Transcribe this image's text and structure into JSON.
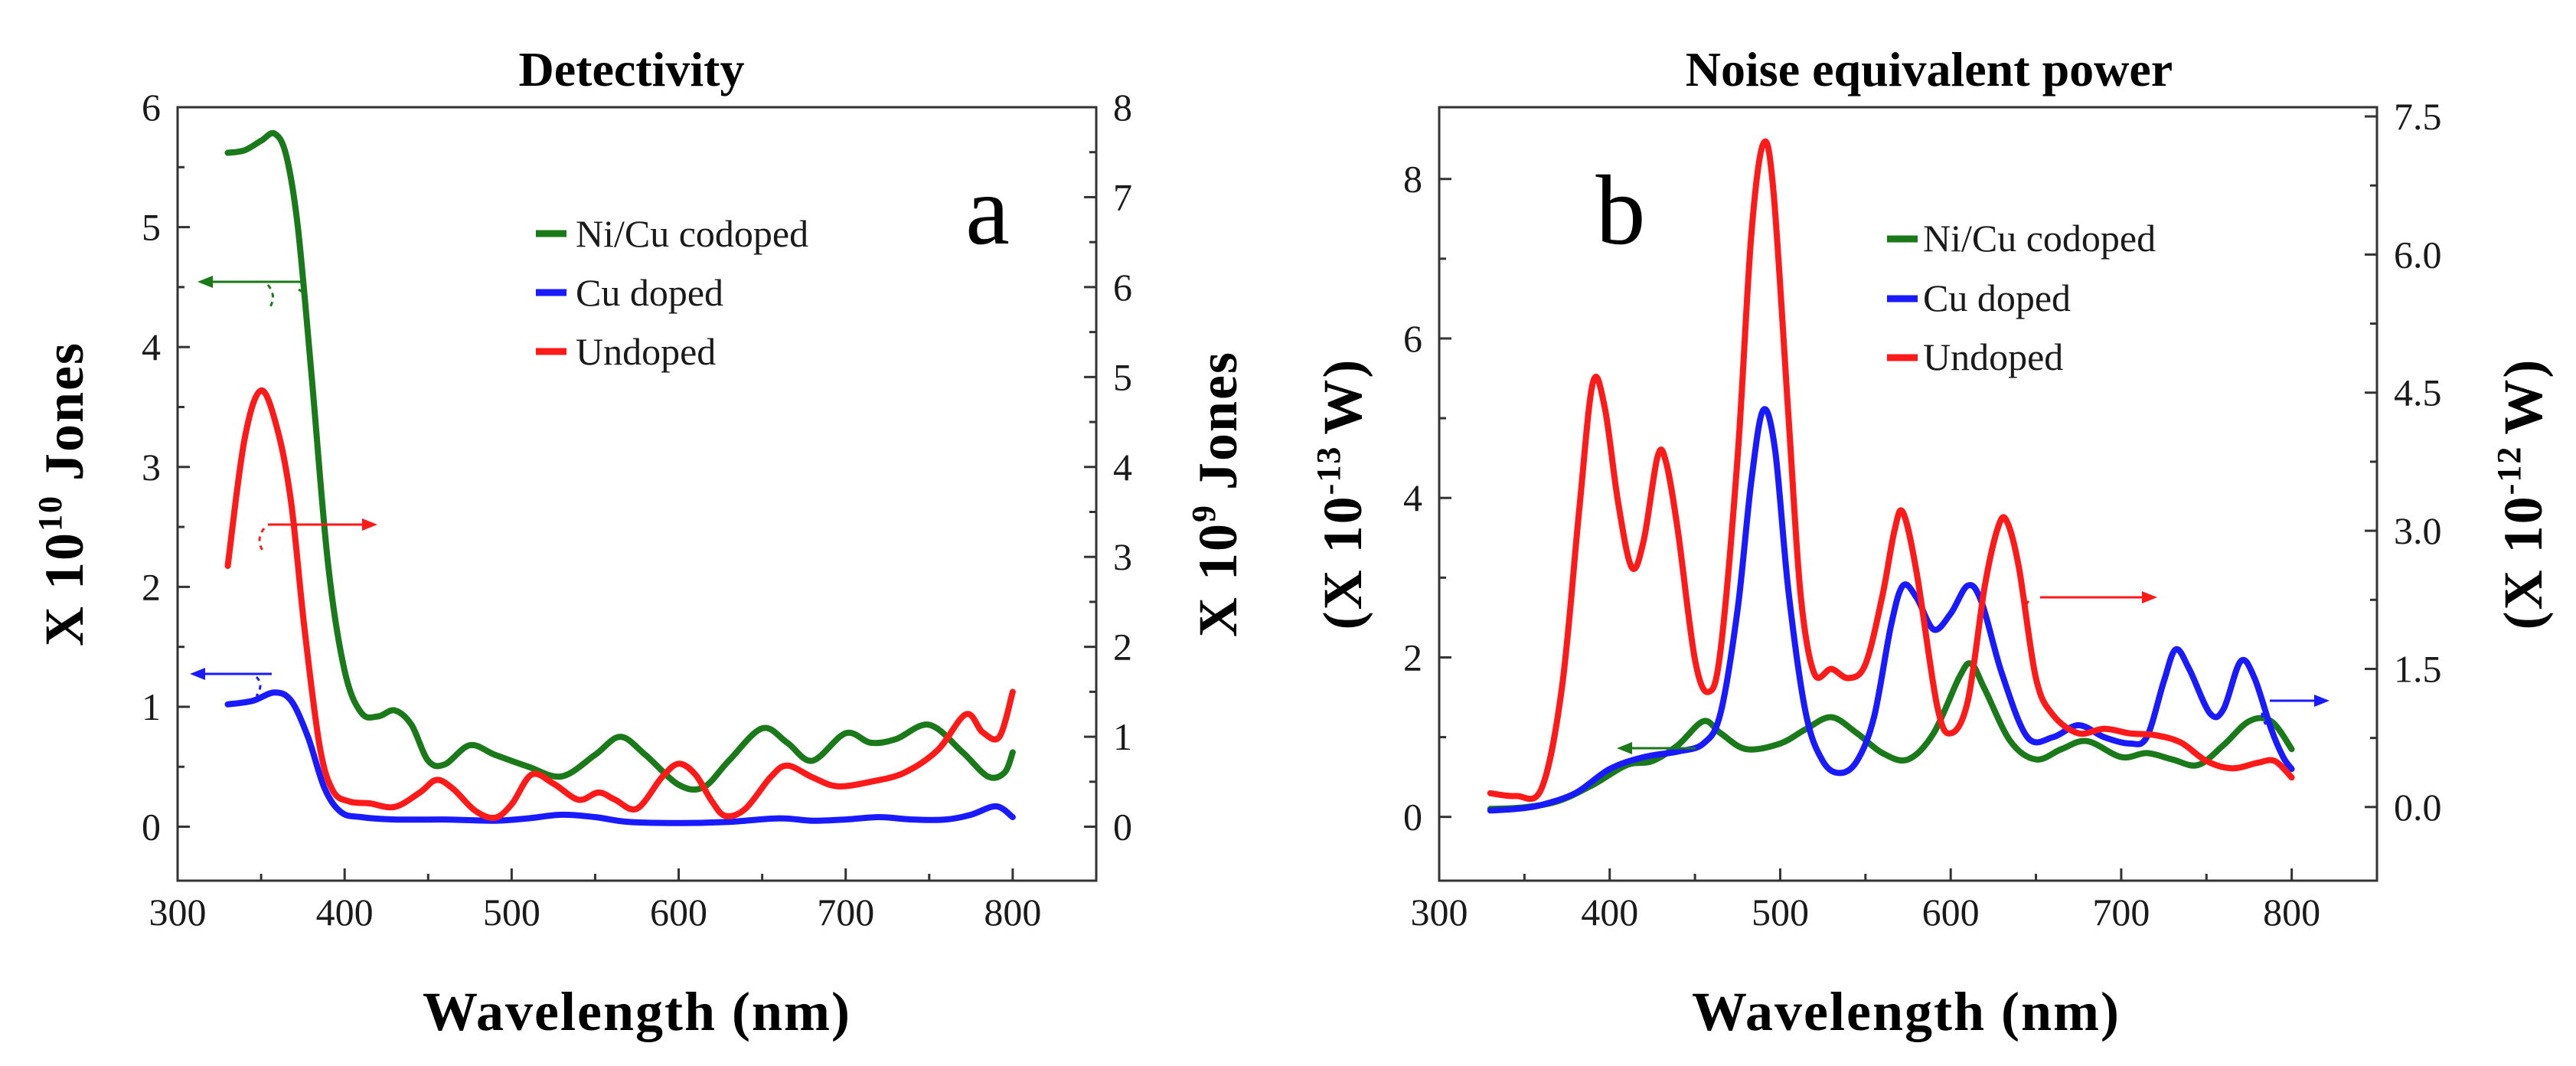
{
  "colors": {
    "codoped": "#1a7a1a",
    "cu": "#1a1aff",
    "undoped": "#ff1a1a",
    "axis": "#333333"
  },
  "chart_data": [
    {
      "type": "line",
      "panel_label": "a",
      "title": "Detectivity",
      "xlabel": "Wavelength (nm)",
      "ylabel": "X 10",
      "ylabel_exp": "10",
      "ylabel_unit": "Jones",
      "y2label": "X 10",
      "y2label_exp": "9",
      "y2label_unit": "Jones",
      "xlim": [
        300,
        850
      ],
      "ylim": [
        -0.45,
        6
      ],
      "y2lim": [
        -0.6,
        8
      ],
      "xticks": [
        "300",
        "400",
        "500",
        "600",
        "700",
        "800"
      ],
      "yticks": [
        "0",
        "1",
        "2",
        "3",
        "4",
        "5",
        "6"
      ],
      "y2ticks": [
        "0",
        "1",
        "2",
        "3",
        "4",
        "5",
        "6",
        "7",
        "8"
      ],
      "legend": [
        "Ni/Cu codoped",
        "Cu doped",
        "Undoped"
      ],
      "series": [
        {
          "name": "Ni/Cu codoped",
          "axis": "left",
          "color": "#1a7a1a",
          "points": [
            [
              330,
              5.62
            ],
            [
              340,
              5.64
            ],
            [
              350,
              5.72
            ],
            [
              358,
              5.78
            ],
            [
              365,
              5.6
            ],
            [
              372,
              5.0
            ],
            [
              380,
              3.8
            ],
            [
              390,
              2.2
            ],
            [
              400,
              1.3
            ],
            [
              410,
              0.95
            ],
            [
              420,
              0.92
            ],
            [
              430,
              0.97
            ],
            [
              440,
              0.85
            ],
            [
              450,
              0.55
            ],
            [
              460,
              0.52
            ],
            [
              475,
              0.68
            ],
            [
              490,
              0.6
            ],
            [
              510,
              0.5
            ],
            [
              530,
              0.42
            ],
            [
              550,
              0.6
            ],
            [
              565,
              0.75
            ],
            [
              580,
              0.6
            ],
            [
              600,
              0.35
            ],
            [
              615,
              0.33
            ],
            [
              630,
              0.55
            ],
            [
              650,
              0.82
            ],
            [
              665,
              0.7
            ],
            [
              680,
              0.55
            ],
            [
              700,
              0.78
            ],
            [
              715,
              0.7
            ],
            [
              730,
              0.73
            ],
            [
              750,
              0.85
            ],
            [
              770,
              0.62
            ],
            [
              785,
              0.42
            ],
            [
              795,
              0.45
            ],
            [
              800,
              0.62
            ]
          ]
        },
        {
          "name": "Cu doped",
          "axis": "left",
          "color": "#1a1aff",
          "points": [
            [
              330,
              1.02
            ],
            [
              345,
              1.05
            ],
            [
              358,
              1.12
            ],
            [
              368,
              1.05
            ],
            [
              378,
              0.75
            ],
            [
              388,
              0.32
            ],
            [
              398,
              0.12
            ],
            [
              410,
              0.08
            ],
            [
              430,
              0.06
            ],
            [
              460,
              0.06
            ],
            [
              490,
              0.05
            ],
            [
              510,
              0.07
            ],
            [
              530,
              0.1
            ],
            [
              550,
              0.08
            ],
            [
              570,
              0.04
            ],
            [
              600,
              0.03
            ],
            [
              630,
              0.04
            ],
            [
              660,
              0.07
            ],
            [
              680,
              0.05
            ],
            [
              700,
              0.06
            ],
            [
              720,
              0.08
            ],
            [
              740,
              0.06
            ],
            [
              760,
              0.06
            ],
            [
              775,
              0.1
            ],
            [
              790,
              0.17
            ],
            [
              800,
              0.08
            ]
          ]
        },
        {
          "name": "Undoped",
          "axis": "right",
          "color": "#ff1a1a",
          "points": [
            [
              330,
              2.9
            ],
            [
              340,
              4.3
            ],
            [
              350,
              4.85
            ],
            [
              360,
              4.4
            ],
            [
              368,
              3.6
            ],
            [
              376,
              2.2
            ],
            [
              385,
              0.9
            ],
            [
              393,
              0.4
            ],
            [
              403,
              0.28
            ],
            [
              415,
              0.26
            ],
            [
              430,
              0.22
            ],
            [
              445,
              0.38
            ],
            [
              455,
              0.52
            ],
            [
              465,
              0.42
            ],
            [
              478,
              0.18
            ],
            [
              490,
              0.1
            ],
            [
              500,
              0.25
            ],
            [
              512,
              0.58
            ],
            [
              525,
              0.48
            ],
            [
              540,
              0.3
            ],
            [
              552,
              0.38
            ],
            [
              562,
              0.3
            ],
            [
              575,
              0.2
            ],
            [
              590,
              0.55
            ],
            [
              600,
              0.7
            ],
            [
              610,
              0.58
            ],
            [
              620,
              0.28
            ],
            [
              628,
              0.12
            ],
            [
              640,
              0.2
            ],
            [
              655,
              0.55
            ],
            [
              665,
              0.68
            ],
            [
              680,
              0.55
            ],
            [
              695,
              0.45
            ],
            [
              715,
              0.5
            ],
            [
              735,
              0.6
            ],
            [
              755,
              0.85
            ],
            [
              772,
              1.25
            ],
            [
              782,
              1.05
            ],
            [
              792,
              1.0
            ],
            [
              800,
              1.5
            ]
          ]
        }
      ]
    },
    {
      "type": "line",
      "panel_label": "b",
      "title": "Noise equivalent power",
      "xlabel": "Wavelength (nm)",
      "ylabel": "(X 10",
      "ylabel_exp": "-13",
      "ylabel_unit": "W)",
      "y2label": "(X 10",
      "y2label_exp": "-12",
      "y2label_unit": "W)",
      "xlim": [
        300,
        850
      ],
      "ylim": [
        -0.8,
        8.9
      ],
      "y2lim": [
        -0.8,
        7.6
      ],
      "xticks": [
        "300",
        "400",
        "500",
        "600",
        "700",
        "800"
      ],
      "yticks": [
        "0",
        "2",
        "4",
        "6",
        "8"
      ],
      "y2ticks": [
        "0.0",
        "1.5",
        "3.0",
        "4.5",
        "6.0",
        "7.5"
      ],
      "legend": [
        "Ni/Cu codoped",
        "Cu doped",
        "Undoped"
      ],
      "series": [
        {
          "name": "Ni/Cu codoped",
          "axis": "left",
          "color": "#1a7a1a",
          "points": [
            [
              330,
              0.1
            ],
            [
              350,
              0.12
            ],
            [
              370,
              0.2
            ],
            [
              390,
              0.4
            ],
            [
              410,
              0.65
            ],
            [
              425,
              0.7
            ],
            [
              440,
              0.9
            ],
            [
              455,
              1.2
            ],
            [
              465,
              1.05
            ],
            [
              480,
              0.85
            ],
            [
              500,
              0.92
            ],
            [
              515,
              1.1
            ],
            [
              530,
              1.25
            ],
            [
              545,
              1.05
            ],
            [
              560,
              0.8
            ],
            [
              575,
              0.72
            ],
            [
              590,
              1.05
            ],
            [
              605,
              1.75
            ],
            [
              612,
              1.92
            ],
            [
              620,
              1.6
            ],
            [
              635,
              0.95
            ],
            [
              650,
              0.72
            ],
            [
              665,
              0.85
            ],
            [
              680,
              0.95
            ],
            [
              700,
              0.75
            ],
            [
              715,
              0.8
            ],
            [
              730,
              0.72
            ],
            [
              745,
              0.65
            ],
            [
              760,
              0.9
            ],
            [
              775,
              1.2
            ],
            [
              788,
              1.2
            ],
            [
              800,
              0.85
            ]
          ]
        },
        {
          "name": "Cu doped",
          "axis": "left",
          "color": "#1a1aff",
          "points": [
            [
              330,
              0.08
            ],
            [
              345,
              0.1
            ],
            [
              360,
              0.15
            ],
            [
              380,
              0.3
            ],
            [
              400,
              0.6
            ],
            [
              420,
              0.75
            ],
            [
              440,
              0.82
            ],
            [
              455,
              0.92
            ],
            [
              465,
              1.3
            ],
            [
              475,
              2.6
            ],
            [
              483,
              4.2
            ],
            [
              490,
              5.1
            ],
            [
              497,
              4.6
            ],
            [
              505,
              2.8
            ],
            [
              515,
              1.3
            ],
            [
              525,
              0.7
            ],
            [
              535,
              0.55
            ],
            [
              545,
              0.7
            ],
            [
              555,
              1.25
            ],
            [
              565,
              2.4
            ],
            [
              572,
              2.9
            ],
            [
              580,
              2.75
            ],
            [
              590,
              2.35
            ],
            [
              600,
              2.55
            ],
            [
              610,
              2.9
            ],
            [
              618,
              2.7
            ],
            [
              630,
              1.8
            ],
            [
              645,
              1.0
            ],
            [
              660,
              1.0
            ],
            [
              675,
              1.15
            ],
            [
              690,
              1.0
            ],
            [
              705,
              0.92
            ],
            [
              715,
              1.0
            ],
            [
              725,
              1.7
            ],
            [
              732,
              2.1
            ],
            [
              740,
              1.85
            ],
            [
              752,
              1.3
            ],
            [
              760,
              1.35
            ],
            [
              770,
              1.95
            ],
            [
              778,
              1.75
            ],
            [
              788,
              1.1
            ],
            [
              795,
              0.75
            ],
            [
              800,
              0.6
            ]
          ]
        },
        {
          "name": "Undoped",
          "axis": "right",
          "color": "#ff1a1a",
          "points": [
            [
              330,
              0.15
            ],
            [
              345,
              0.12
            ],
            [
              360,
              0.2
            ],
            [
              372,
              1.3
            ],
            [
              382,
              3.2
            ],
            [
              390,
              4.6
            ],
            [
              397,
              4.35
            ],
            [
              405,
              3.3
            ],
            [
              413,
              2.6
            ],
            [
              420,
              2.9
            ],
            [
              428,
              3.8
            ],
            [
              433,
              3.75
            ],
            [
              440,
              3.0
            ],
            [
              450,
              1.6
            ],
            [
              458,
              1.25
            ],
            [
              465,
              1.7
            ],
            [
              475,
              3.8
            ],
            [
              483,
              6.2
            ],
            [
              490,
              7.2
            ],
            [
              496,
              6.7
            ],
            [
              505,
              4.2
            ],
            [
              512,
              2.3
            ],
            [
              520,
              1.45
            ],
            [
              530,
              1.5
            ],
            [
              540,
              1.4
            ],
            [
              550,
              1.55
            ],
            [
              560,
              2.3
            ],
            [
              567,
              3.0
            ],
            [
              572,
              3.2
            ],
            [
              580,
              2.55
            ],
            [
              592,
              1.1
            ],
            [
              600,
              0.8
            ],
            [
              610,
              1.15
            ],
            [
              620,
              2.4
            ],
            [
              628,
              3.05
            ],
            [
              633,
              3.1
            ],
            [
              640,
              2.6
            ],
            [
              650,
              1.4
            ],
            [
              660,
              1.0
            ],
            [
              675,
              0.8
            ],
            [
              690,
              0.85
            ],
            [
              705,
              0.8
            ],
            [
              720,
              0.78
            ],
            [
              735,
              0.7
            ],
            [
              750,
              0.5
            ],
            [
              765,
              0.42
            ],
            [
              780,
              0.48
            ],
            [
              790,
              0.5
            ],
            [
              800,
              0.32
            ]
          ]
        }
      ]
    }
  ]
}
